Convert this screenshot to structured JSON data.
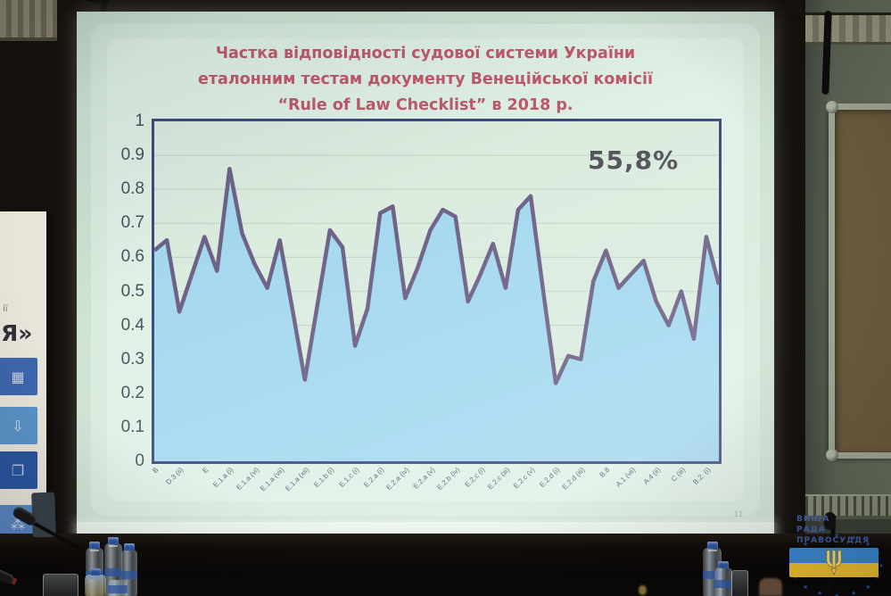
{
  "slide": {
    "title_lines": [
      "Частка відповідності судової системи України",
      "еталонним тестам документу Венеційської комісії",
      "“Rule of Law Checklist” в 2018 р."
    ],
    "page_number": "11"
  },
  "chart_data": {
    "type": "area",
    "title": "Частка відповідності судової системи України еталонним тестам документу Венеційської комісії “Rule of Law Checklist” в 2018 р.",
    "annotation": "55,8%",
    "xlabel": "",
    "ylabel": "",
    "ylim": [
      0,
      1
    ],
    "ytick_labels": [
      "1",
      "0.9",
      "0.8",
      "0.7",
      "0.6",
      "0.5",
      "0.4",
      "0.3",
      "0.2",
      "0.1",
      "0"
    ],
    "grid": "horizontal",
    "legend": "none",
    "x_labels_every_n_points": 2,
    "categories": [
      "B",
      "D.3 (ii)",
      "E",
      "E.1.a (i)",
      "E.1.a (vi)",
      "E.1.a (vii)",
      "E.1.a (xii)",
      "E.1.b (i)",
      "E.1.c (i)",
      "E.2.a (i)",
      "E.2.a (iv)",
      "E.2.a (v)",
      "E.2.b (iv)",
      "E.2.c (i)",
      "E.2.c (iii)",
      "E.2.c (v)",
      "E.2.d (i)",
      "E.2.d (iii)",
      "B.8",
      "A.1 (vii)",
      "A.4 (ii)",
      "C (iii)",
      "B.2. (i)"
    ],
    "values": [
      0.62,
      0.65,
      0.44,
      0.55,
      0.66,
      0.56,
      0.86,
      0.67,
      0.58,
      0.51,
      0.65,
      0.45,
      0.24,
      0.46,
      0.68,
      0.63,
      0.34,
      0.45,
      0.73,
      0.75,
      0.48,
      0.57,
      0.68,
      0.74,
      0.72,
      0.47,
      0.55,
      0.64,
      0.51,
      0.74,
      0.78,
      0.5,
      0.23,
      0.31,
      0.3,
      0.53,
      0.62,
      0.51,
      0.55,
      0.59,
      0.47,
      0.4,
      0.5,
      0.36,
      0.66,
      0.52
    ]
  },
  "banner": {
    "text_fragment_top": "ії",
    "quote_fragment": "Я»",
    "tile_icons": [
      "building-icon",
      "download-icon",
      "documents-icon",
      "people-icon"
    ]
  },
  "watermark": {
    "org_lines": [
      "ВИЩА",
      "РАДА",
      "ПРАВОСУДДЯ"
    ],
    "star_count": 16
  },
  "colors": {
    "slide_bg": "#dcecdf",
    "title_text": "#be5a6c",
    "chart_fill": "#a6d9ef",
    "chart_line": "#6e6387",
    "chart_frame": "#3e4980",
    "gridline": "#c5d9c9",
    "annotation_text": "#55535a",
    "watermark_blue": "#4a63b4",
    "flag_blue": "#3d8edb",
    "flag_yellow": "#f6c832",
    "banner_tiles": [
      "#3d67ae",
      "#5b93c8",
      "#2c55a0",
      "#5a88c4"
    ]
  }
}
